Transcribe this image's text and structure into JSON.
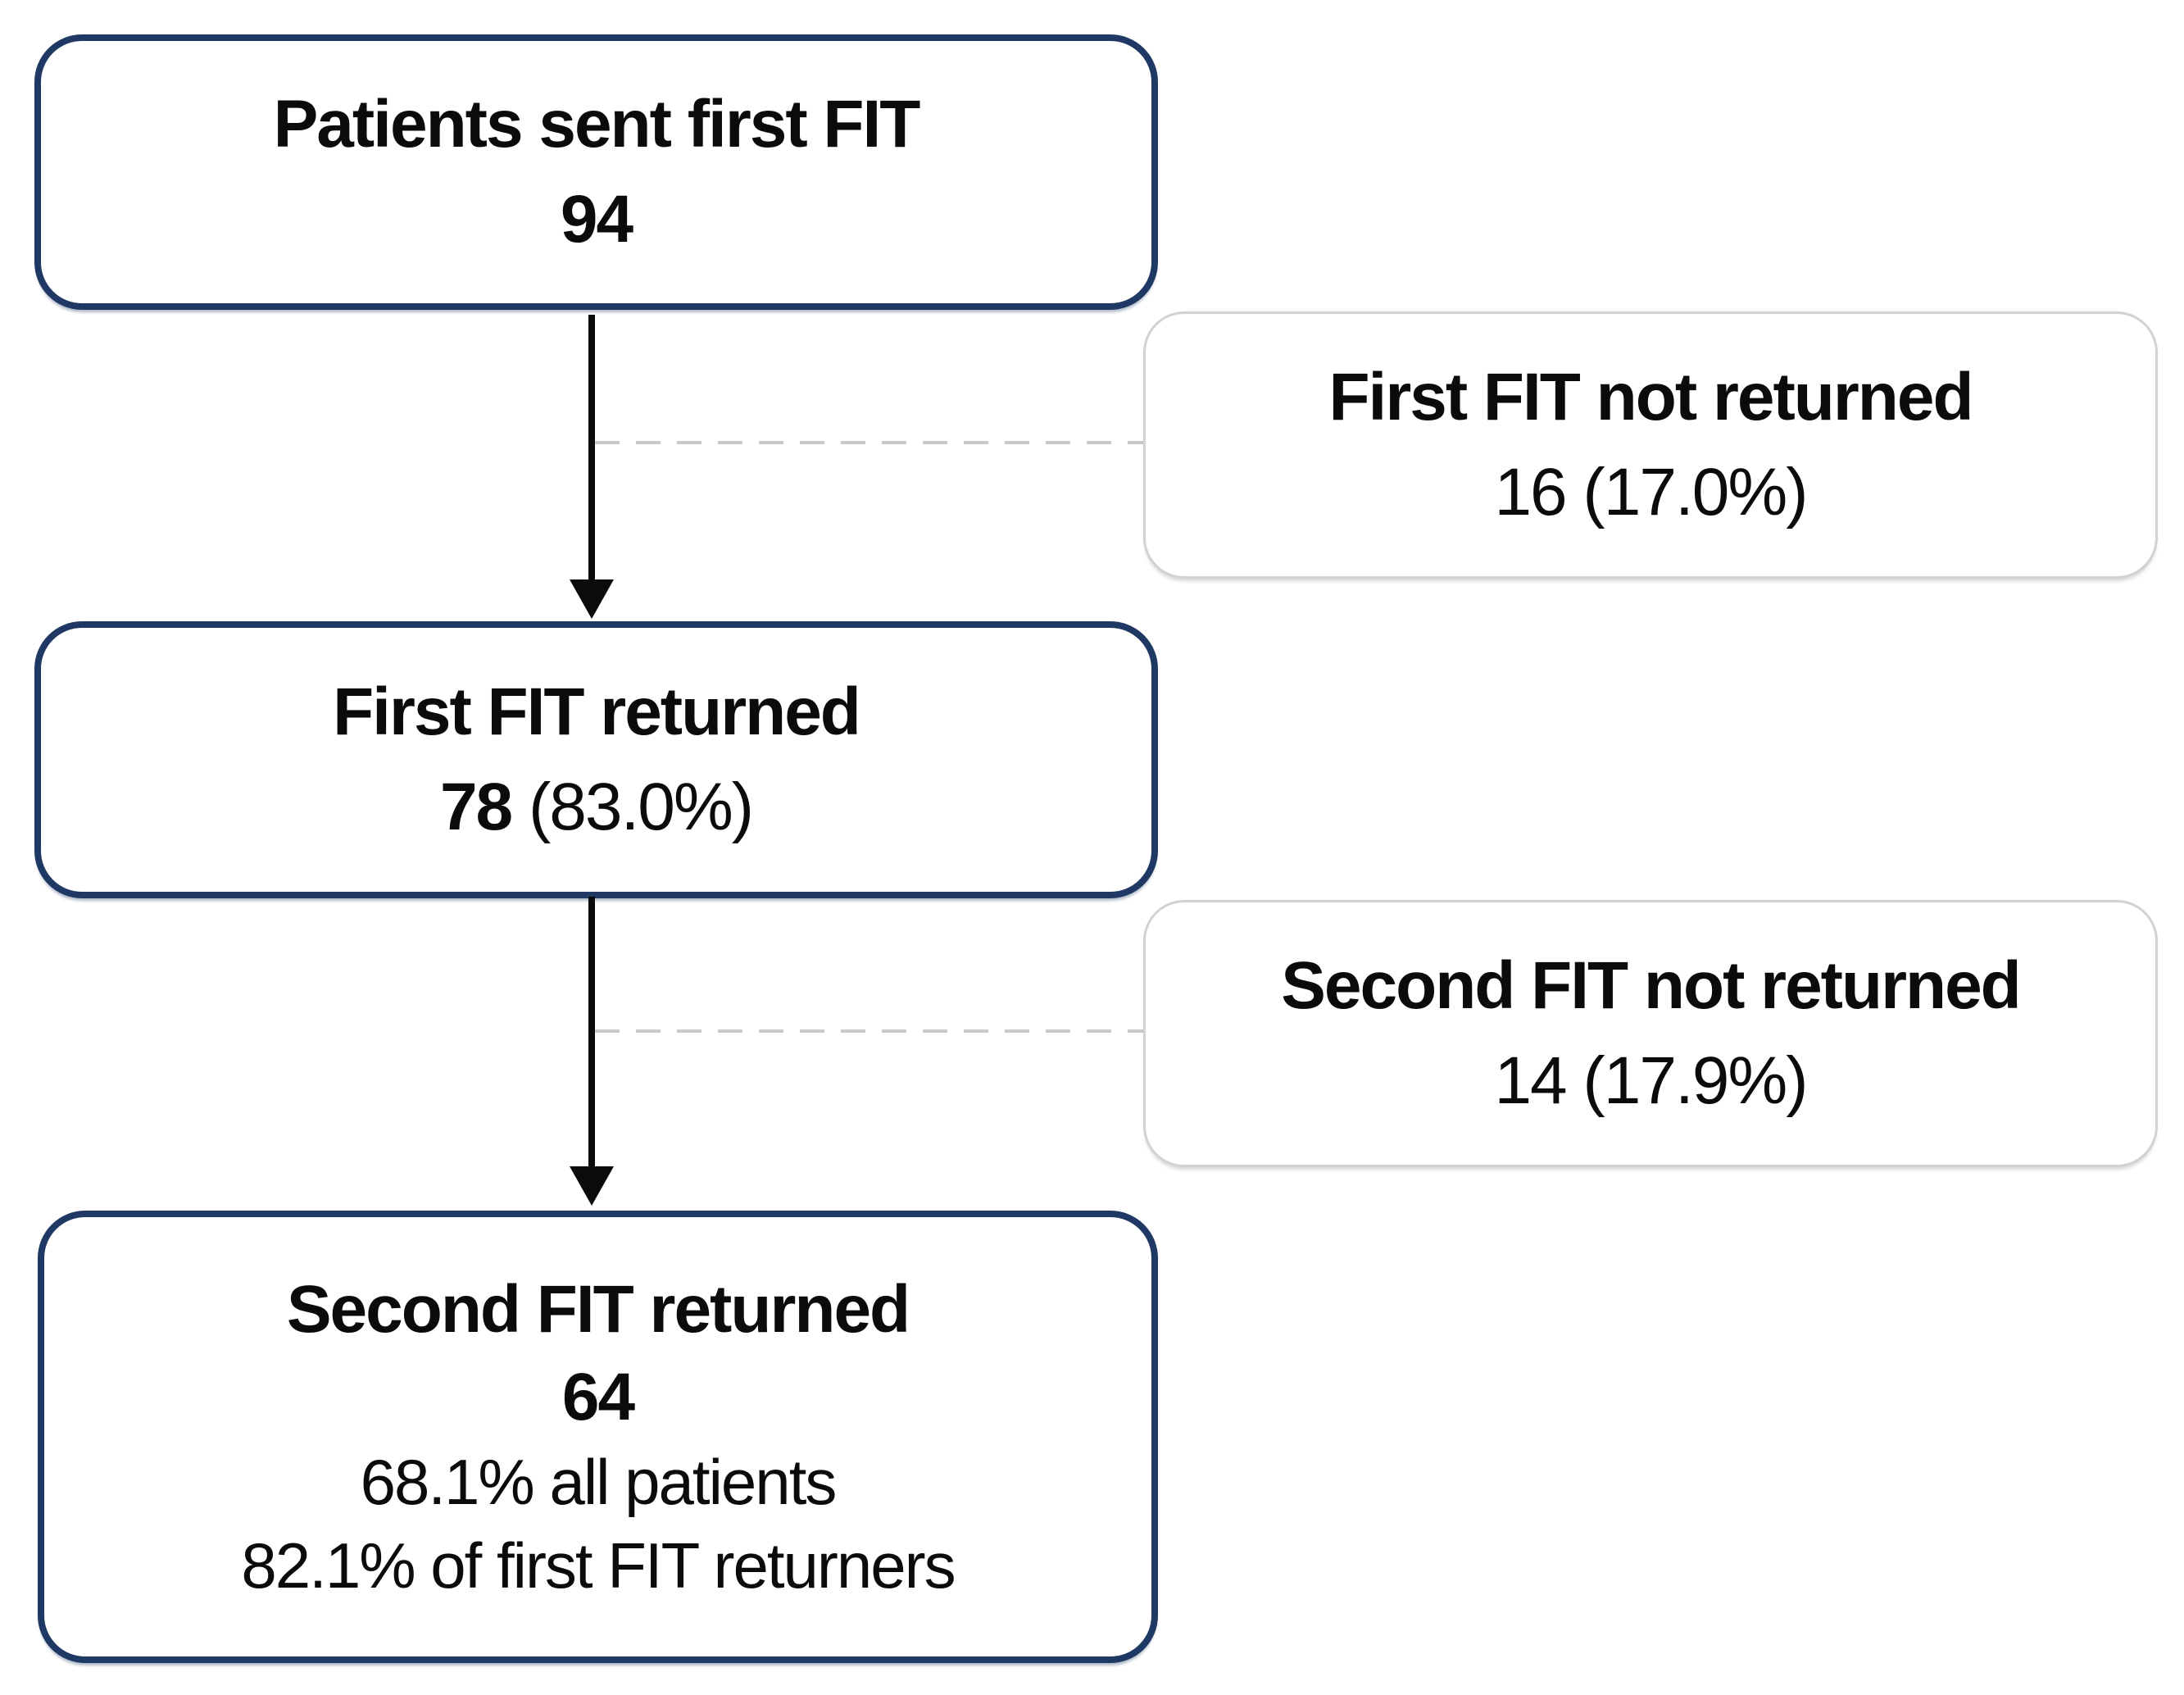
{
  "diagram": {
    "type": "flowchart",
    "nodes": {
      "sent_first_fit": {
        "title": "Patients sent first FIT",
        "value": "94"
      },
      "first_not_returned": {
        "title": "First FIT not returned",
        "value": "16 (17.0%)"
      },
      "first_returned": {
        "title": "First FIT returned",
        "count": "78",
        "pct": " (83.0%)"
      },
      "second_not_returned": {
        "title": "Second FIT not returned",
        "value": "14 (17.9%)"
      },
      "second_returned": {
        "title": "Second FIT returned",
        "value": "64",
        "pct_all_patients": "68.1% all patients",
        "pct_first_returners": "82.1% of first FIT returners"
      }
    },
    "edges": [
      {
        "from": "sent_first_fit",
        "to": "first_returned",
        "style": "solid-arrow-down"
      },
      {
        "from": "sent_first_fit",
        "to": "first_not_returned",
        "style": "dashed-line-right"
      },
      {
        "from": "first_returned",
        "to": "second_returned",
        "style": "solid-arrow-down"
      },
      {
        "from": "first_returned",
        "to": "second_not_returned",
        "style": "dashed-line-right"
      }
    ],
    "colors": {
      "main_box_border": "#1f3864",
      "side_box_border": "#d2d2d2",
      "dashed_connector": "#c9c9c9",
      "arrow": "#0b0b0b",
      "text": "#0b0b0b",
      "background": "#ffffff"
    }
  }
}
